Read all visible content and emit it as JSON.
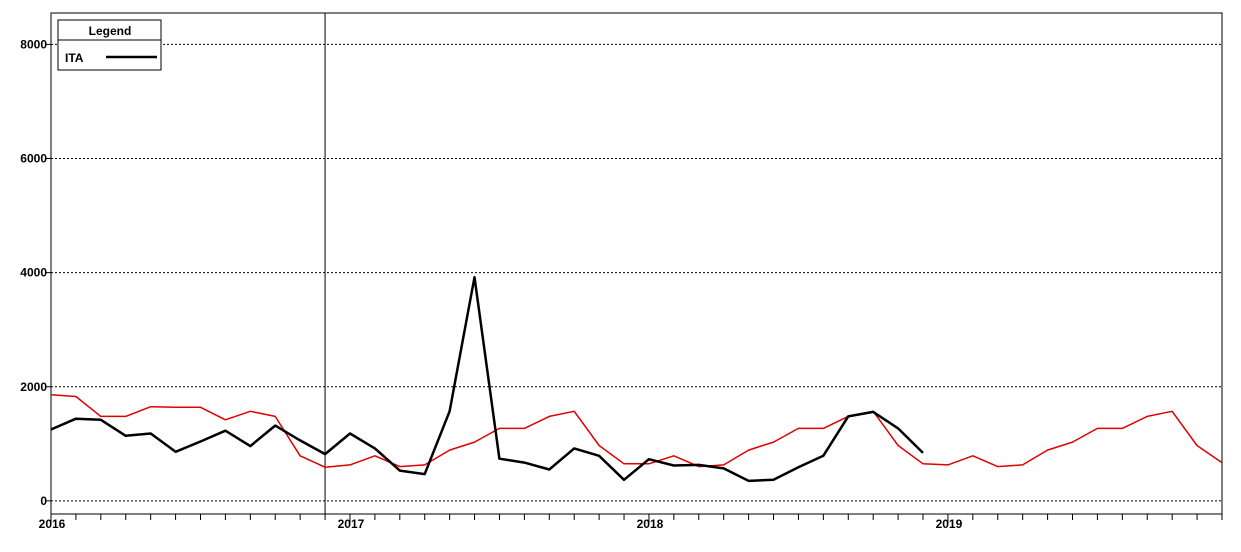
{
  "chart_data": {
    "type": "line",
    "title": "",
    "xlabel": "",
    "ylabel": "",
    "xlim": [
      2016.0,
      2019.9167
    ],
    "ylim": [
      -230,
      8550
    ],
    "grid": "horizontal dotted",
    "legend_position": "top-left",
    "yticks": [
      0,
      2000,
      4000,
      6000,
      8000
    ],
    "ytick_labels": [
      "0",
      "2000",
      "4000",
      "6000",
      "8000"
    ],
    "xticks": [
      2016,
      2017,
      2018,
      2019
    ],
    "xtick_labels": [
      "2016",
      "2017",
      "2018",
      "2019"
    ],
    "marker_x": 2016.9167,
    "legend": {
      "title": "Legend",
      "entries": [
        {
          "label": "ITA",
          "color": "#000000"
        }
      ]
    },
    "series": [
      {
        "name": "ITA",
        "color": "#000000",
        "x_start": 2016.0,
        "step": 0.08333,
        "values": [
          1250,
          1440,
          1420,
          1140,
          1180,
          860,
          1040,
          1230,
          960,
          1320,
          1060,
          820,
          1180,
          920,
          530,
          470,
          1570,
          3920,
          740,
          670,
          550,
          920,
          790,
          370,
          730,
          620,
          630,
          570,
          350,
          370,
          590,
          790,
          1480,
          1560,
          1270,
          840
        ]
      },
      {
        "color": "#e00000",
        "x_start": 2016.0,
        "step": 0.08333,
        "values": [
          1860,
          1830,
          1480,
          1480,
          1650,
          1640,
          1640,
          1420,
          1570,
          1480,
          790,
          590,
          630,
          790,
          600,
          630,
          890,
          1030,
          1270,
          1270,
          1480,
          1570,
          970,
          650,
          650,
          790,
          600,
          630,
          890,
          1030,
          1270,
          1270,
          1480,
          1570,
          970,
          650,
          630,
          790,
          600,
          630,
          890,
          1030,
          1270,
          1270,
          1480,
          1570,
          970,
          670
        ]
      }
    ]
  }
}
